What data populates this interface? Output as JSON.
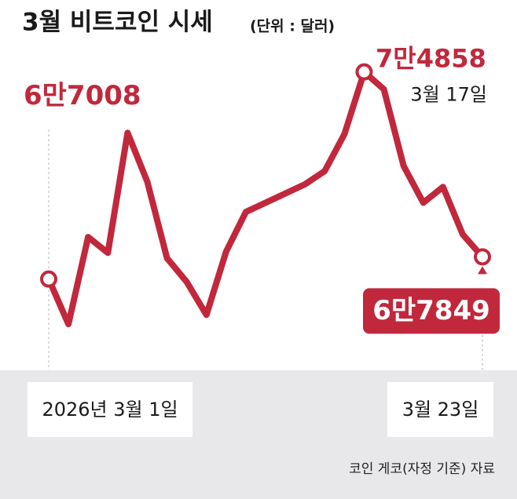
{
  "chart_data": {
    "type": "line",
    "title": "3월 비트코인 시세",
    "subtitle": "(단위 : 달러)",
    "categories": [
      "2026년 3월 1일",
      null,
      null,
      null,
      null,
      null,
      null,
      null,
      null,
      null,
      null,
      null,
      null,
      null,
      null,
      null,
      null,
      null,
      null,
      null,
      null,
      null,
      "3월 23일"
    ],
    "series": [
      {
        "color": "#c1283c",
        "values": [
          67008,
          65300,
          68600,
          68000,
          72550,
          70700,
          67800,
          66900,
          65650,
          68050,
          69550,
          69900,
          70250,
          70600,
          71100,
          72500,
          74858,
          74200,
          71300,
          69900,
          70500,
          68700,
          67849
        ],
        "value_labels": [
          "6만7008",
          null,
          null,
          null,
          null,
          null,
          null,
          null,
          null,
          null,
          null,
          null,
          null,
          null,
          null,
          null,
          "7만4858",
          null,
          null,
          null,
          null,
          null,
          "6만7849"
        ]
      }
    ],
    "annotation": "3월 17일",
    "ylim": [
      64500,
      75800
    ],
    "source": "코인 게코(자정 기준) 자료"
  }
}
